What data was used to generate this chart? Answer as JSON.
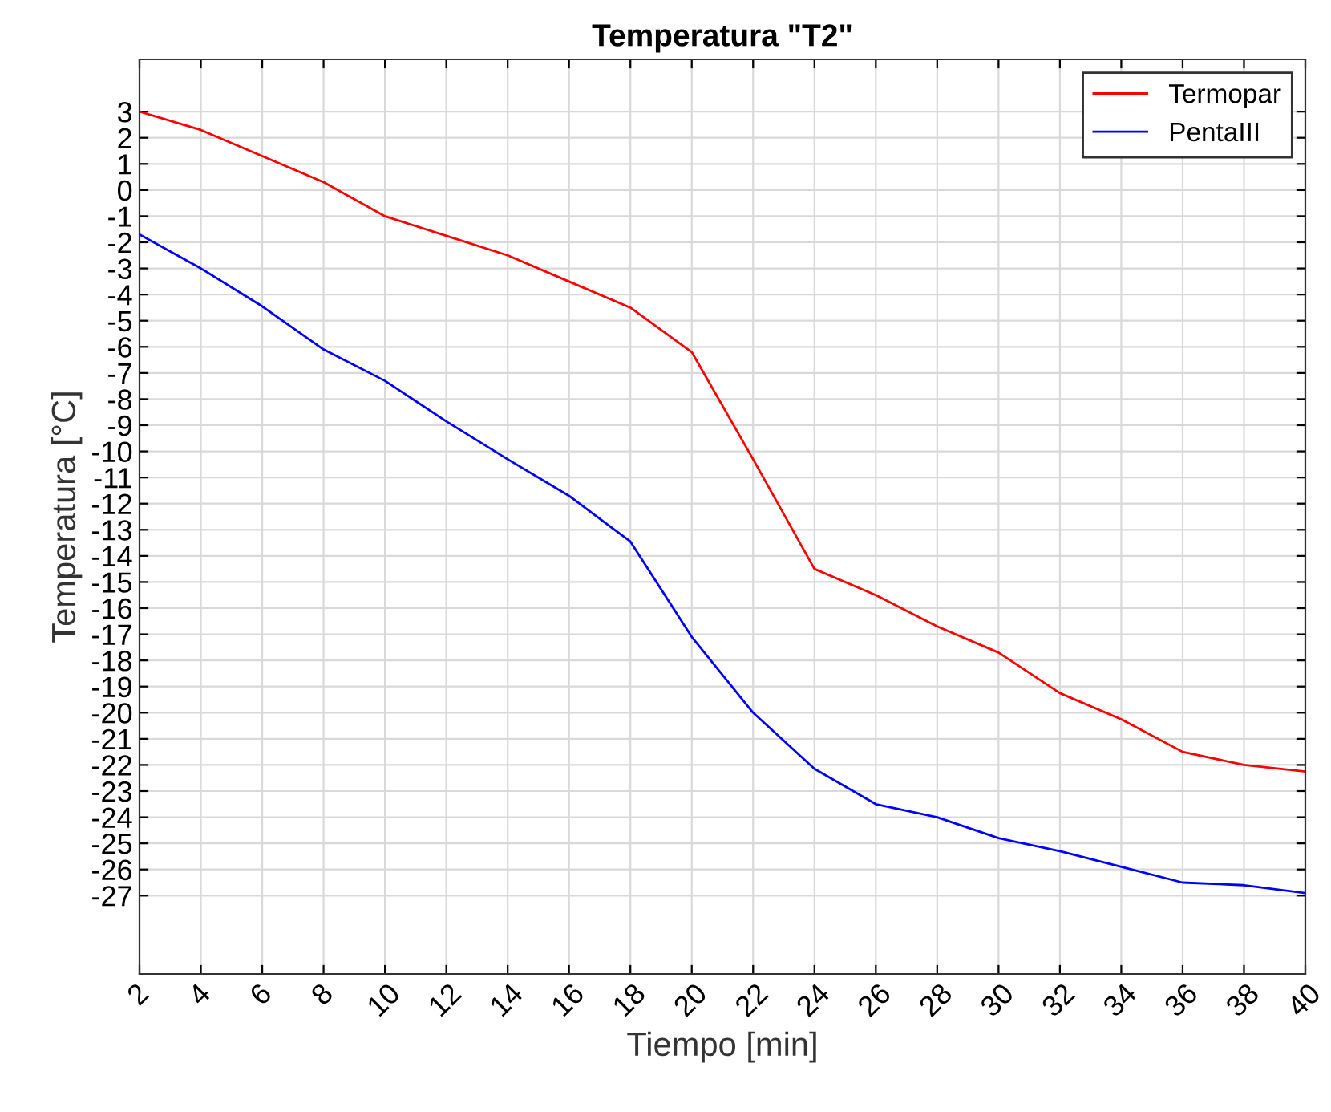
{
  "chart_data": {
    "type": "line",
    "title": "Temperatura \"T2\"",
    "xlabel": "Tiempo [min]",
    "ylabel": "Temperatura [°C]",
    "x": [
      2,
      4,
      6,
      8,
      10,
      12,
      14,
      16,
      18,
      20,
      22,
      24,
      26,
      28,
      30,
      32,
      34,
      36,
      38,
      40
    ],
    "series": [
      {
        "name": "Termopar",
        "color": "#ff0000",
        "values": [
          3,
          2.3,
          1.3,
          0.3,
          -1.0,
          -1.75,
          -2.5,
          -3.5,
          -4.5,
          -6.2,
          -10.3,
          -14.5,
          -15.5,
          -16.7,
          -17.7,
          -19.25,
          -20.25,
          -21.5,
          -22.0,
          -22.25
        ]
      },
      {
        "name": "PentaIII",
        "color": "#0000ff",
        "values": [
          -1.7,
          -3.0,
          -4.45,
          -6.1,
          -7.3,
          -8.85,
          -10.3,
          -11.7,
          -13.45,
          -17.1,
          -20.0,
          -22.15,
          -23.5,
          -24.0,
          -24.8,
          -25.3,
          -25.9,
          -26.5,
          -26.6,
          -26.9
        ]
      }
    ],
    "xlim": [
      2,
      40
    ],
    "xticks": [
      2,
      4,
      6,
      8,
      10,
      12,
      14,
      16,
      18,
      20,
      22,
      24,
      26,
      28,
      30,
      32,
      34,
      36,
      38,
      40
    ],
    "ylim": [
      -30,
      5
    ],
    "yticks": [
      -27,
      -26,
      -25,
      -24,
      -23,
      -22,
      -21,
      -20,
      -19,
      -18,
      -17,
      -16,
      -15,
      -14,
      -13,
      -12,
      -11,
      -10,
      -9,
      -8,
      -7,
      -6,
      -5,
      -4,
      -3,
      -2,
      -1,
      0,
      1,
      2,
      3
    ],
    "grid": true,
    "legend": "top right",
    "marker": "none",
    "line_style": "solid"
  }
}
